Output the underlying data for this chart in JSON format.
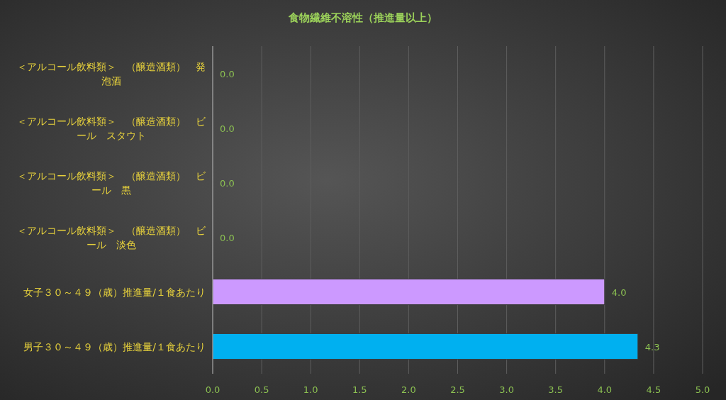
{
  "chart_data": {
    "type": "bar",
    "orientation": "horizontal",
    "title": "食物繊維不溶性（推進量以上）",
    "categories": [
      "＜アルコール飲料類＞　（醸造酒類）　発泡酒",
      "＜アルコール飲料類＞　（醸造酒類）　ビール　スタウト",
      "＜アルコール飲料類＞　（醸造酒類）　ビール　黒",
      "＜アルコール飲料類＞　（醸造酒類）　ビール　淡色",
      "女子３０～４９（歳）推進量/１食あたり",
      "男子３０～４９（歳）推進量/１食あたり"
    ],
    "values": [
      0,
      0,
      0,
      0,
      4.0,
      4.34
    ],
    "value_labels": [
      "0.0",
      "0.0",
      "0.0",
      "0.0",
      "4.0",
      "4.3"
    ],
    "colors": [
      "#00b0f0",
      "#00b0f0",
      "#00b0f0",
      "#00b0f0",
      "#cc99ff",
      "#00b0f0"
    ],
    "xlim": [
      0,
      5
    ],
    "xticks": [
      {
        "value": 0,
        "label": "0.0"
      },
      {
        "value": 0.5,
        "label": "0.5"
      },
      {
        "value": 1,
        "label": "1.0"
      },
      {
        "value": 1.5,
        "label": "1.5"
      },
      {
        "value": 2,
        "label": "2.0"
      },
      {
        "value": 2.5,
        "label": "2.5"
      },
      {
        "value": 3,
        "label": "3.0"
      },
      {
        "value": 3.5,
        "label": "3.5"
      },
      {
        "value": 4,
        "label": "4.0"
      },
      {
        "value": 4.5,
        "label": "4.5"
      },
      {
        "value": 5,
        "label": "5.0"
      }
    ],
    "grid": "x"
  }
}
